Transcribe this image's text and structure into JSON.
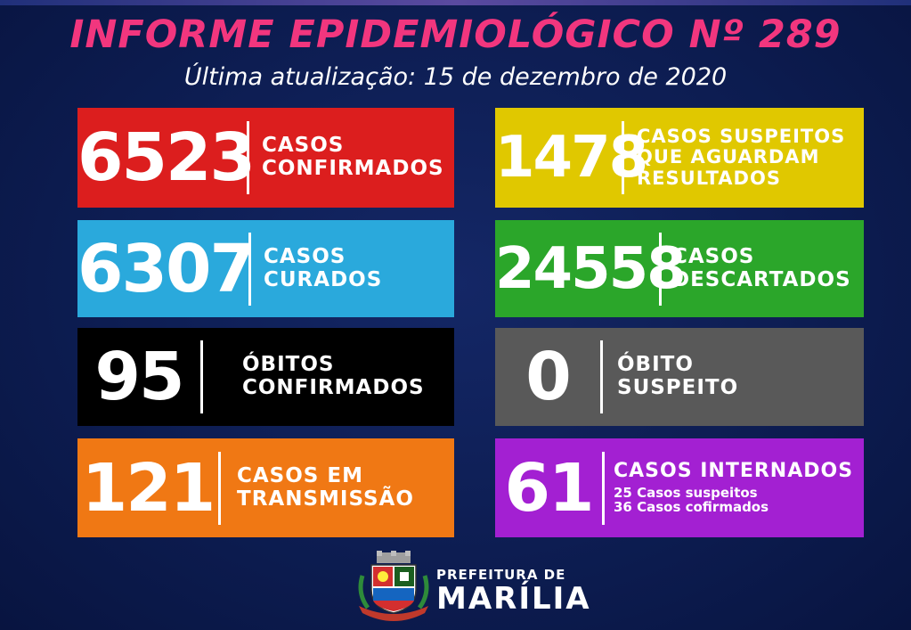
{
  "header": {
    "title": "INFORME EPIDEMIOLÓGICO Nº 289",
    "subtitle": "Última atualização: 15 de dezembro de 2020"
  },
  "cards": {
    "confirmed": {
      "value": "6523",
      "label_1": "CASOS",
      "label_2": "CONFIRMADOS",
      "color": "#dc1e1e"
    },
    "suspected": {
      "value": "1478",
      "label_1": "CASOS SUSPEITOS",
      "label_2": "QUE AGUARDAM",
      "label_3": "RESULTADOS",
      "color": "#e0c800"
    },
    "cured": {
      "value": "6307",
      "label_1": "CASOS",
      "label_2": "CURADOS",
      "color": "#2aa9dc"
    },
    "discarded": {
      "value": "24558",
      "label_1": "CASOS",
      "label_2": "DESCARTADOS",
      "color": "#2ba62a"
    },
    "deaths": {
      "value": "95",
      "label_1": "ÓBITOS",
      "label_2": "CONFIRMADOS",
      "color": "#000000"
    },
    "suspected_death": {
      "value": "0",
      "label_1": "ÓBITO",
      "label_2": "SUSPEITO",
      "color": "#595959"
    },
    "transmission": {
      "value": "121",
      "label_1": "CASOS EM",
      "label_2": "TRANSMISSÃO",
      "color": "#f07814"
    },
    "hospitalized": {
      "value": "61",
      "label_1": "CASOS INTERNADOS",
      "detail_1": "25 Casos suspeitos",
      "detail_2": "36 Casos cofirmados",
      "color": "#a320d2"
    }
  },
  "footer": {
    "prefeitura": "PREFEITURA DE",
    "city": "MARÍLIA",
    "logo_icon": "coat-of-arms-icon"
  }
}
